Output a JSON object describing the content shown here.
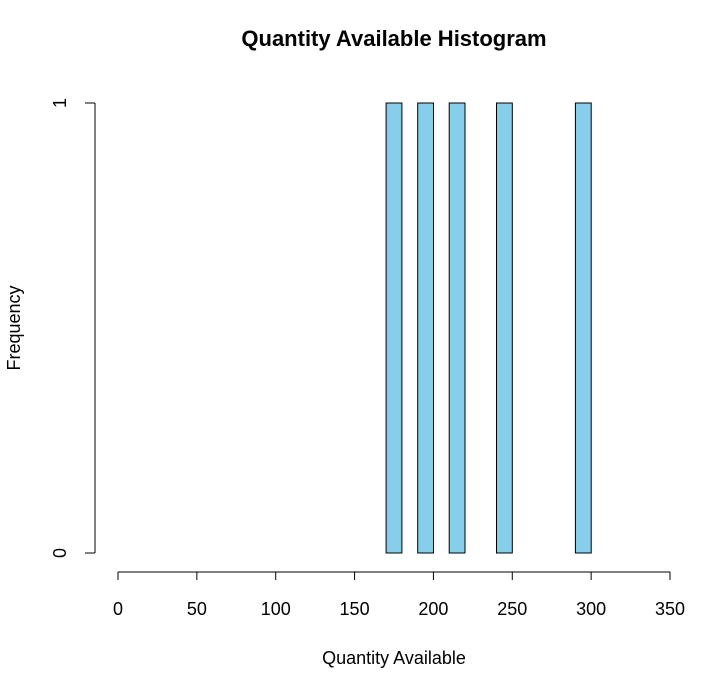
{
  "chart_data": {
    "type": "bar",
    "title": "Quantity Available Histogram",
    "xlabel": "Quantity Available",
    "ylabel": "Frequency",
    "xlim": [
      0,
      350
    ],
    "ylim": [
      0,
      1
    ],
    "x_ticks": [
      0,
      50,
      100,
      150,
      200,
      250,
      300,
      350
    ],
    "y_ticks": [
      0,
      1
    ],
    "bin_width": 10,
    "bins": [
      {
        "start": 170,
        "end": 180,
        "count": 1
      },
      {
        "start": 180,
        "end": 190,
        "count": 0
      },
      {
        "start": 190,
        "end": 200,
        "count": 1
      },
      {
        "start": 200,
        "end": 210,
        "count": 0
      },
      {
        "start": 210,
        "end": 220,
        "count": 1
      },
      {
        "start": 220,
        "end": 230,
        "count": 0
      },
      {
        "start": 230,
        "end": 240,
        "count": 0
      },
      {
        "start": 240,
        "end": 250,
        "count": 1
      },
      {
        "start": 250,
        "end": 260,
        "count": 0
      },
      {
        "start": 260,
        "end": 270,
        "count": 0
      },
      {
        "start": 270,
        "end": 280,
        "count": 0
      },
      {
        "start": 280,
        "end": 290,
        "count": 0
      },
      {
        "start": 290,
        "end": 300,
        "count": 1
      }
    ],
    "bar_color": "#87CEEB",
    "grid": false
  }
}
